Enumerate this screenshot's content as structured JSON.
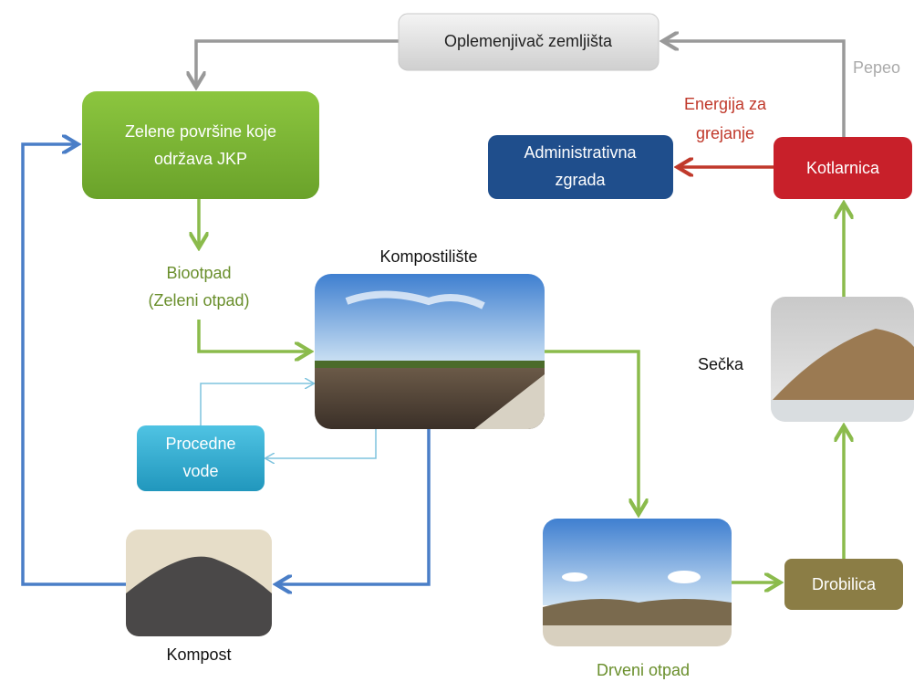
{
  "nodes": {
    "oplemenjivac": {
      "label": "Oplemenjivač zemljišta"
    },
    "pepeo": {
      "label": "Pepeo"
    },
    "zelene_povrsine": {
      "lines": [
        "Zelene površine koje",
        "održava  JKP"
      ]
    },
    "energija": {
      "lines": [
        "Energija za",
        "grejanje"
      ]
    },
    "administrativna": {
      "lines": [
        "Administrativna",
        "zgrada"
      ]
    },
    "kotlarnica": {
      "label": "Kotlarnica"
    },
    "biootpad": {
      "lines": [
        "Biootpad",
        "(Zeleni otpad)"
      ]
    },
    "kompostiliste": {
      "label": "Kompostilište"
    },
    "procedne": {
      "lines": [
        "Procedne",
        "vode"
      ]
    },
    "secka": {
      "label": "Sečka"
    },
    "kompost": {
      "label": "Kompost"
    },
    "drveni_otpad": {
      "label": "Drveni otpad"
    },
    "drobilica": {
      "label": "Drobilica"
    }
  }
}
